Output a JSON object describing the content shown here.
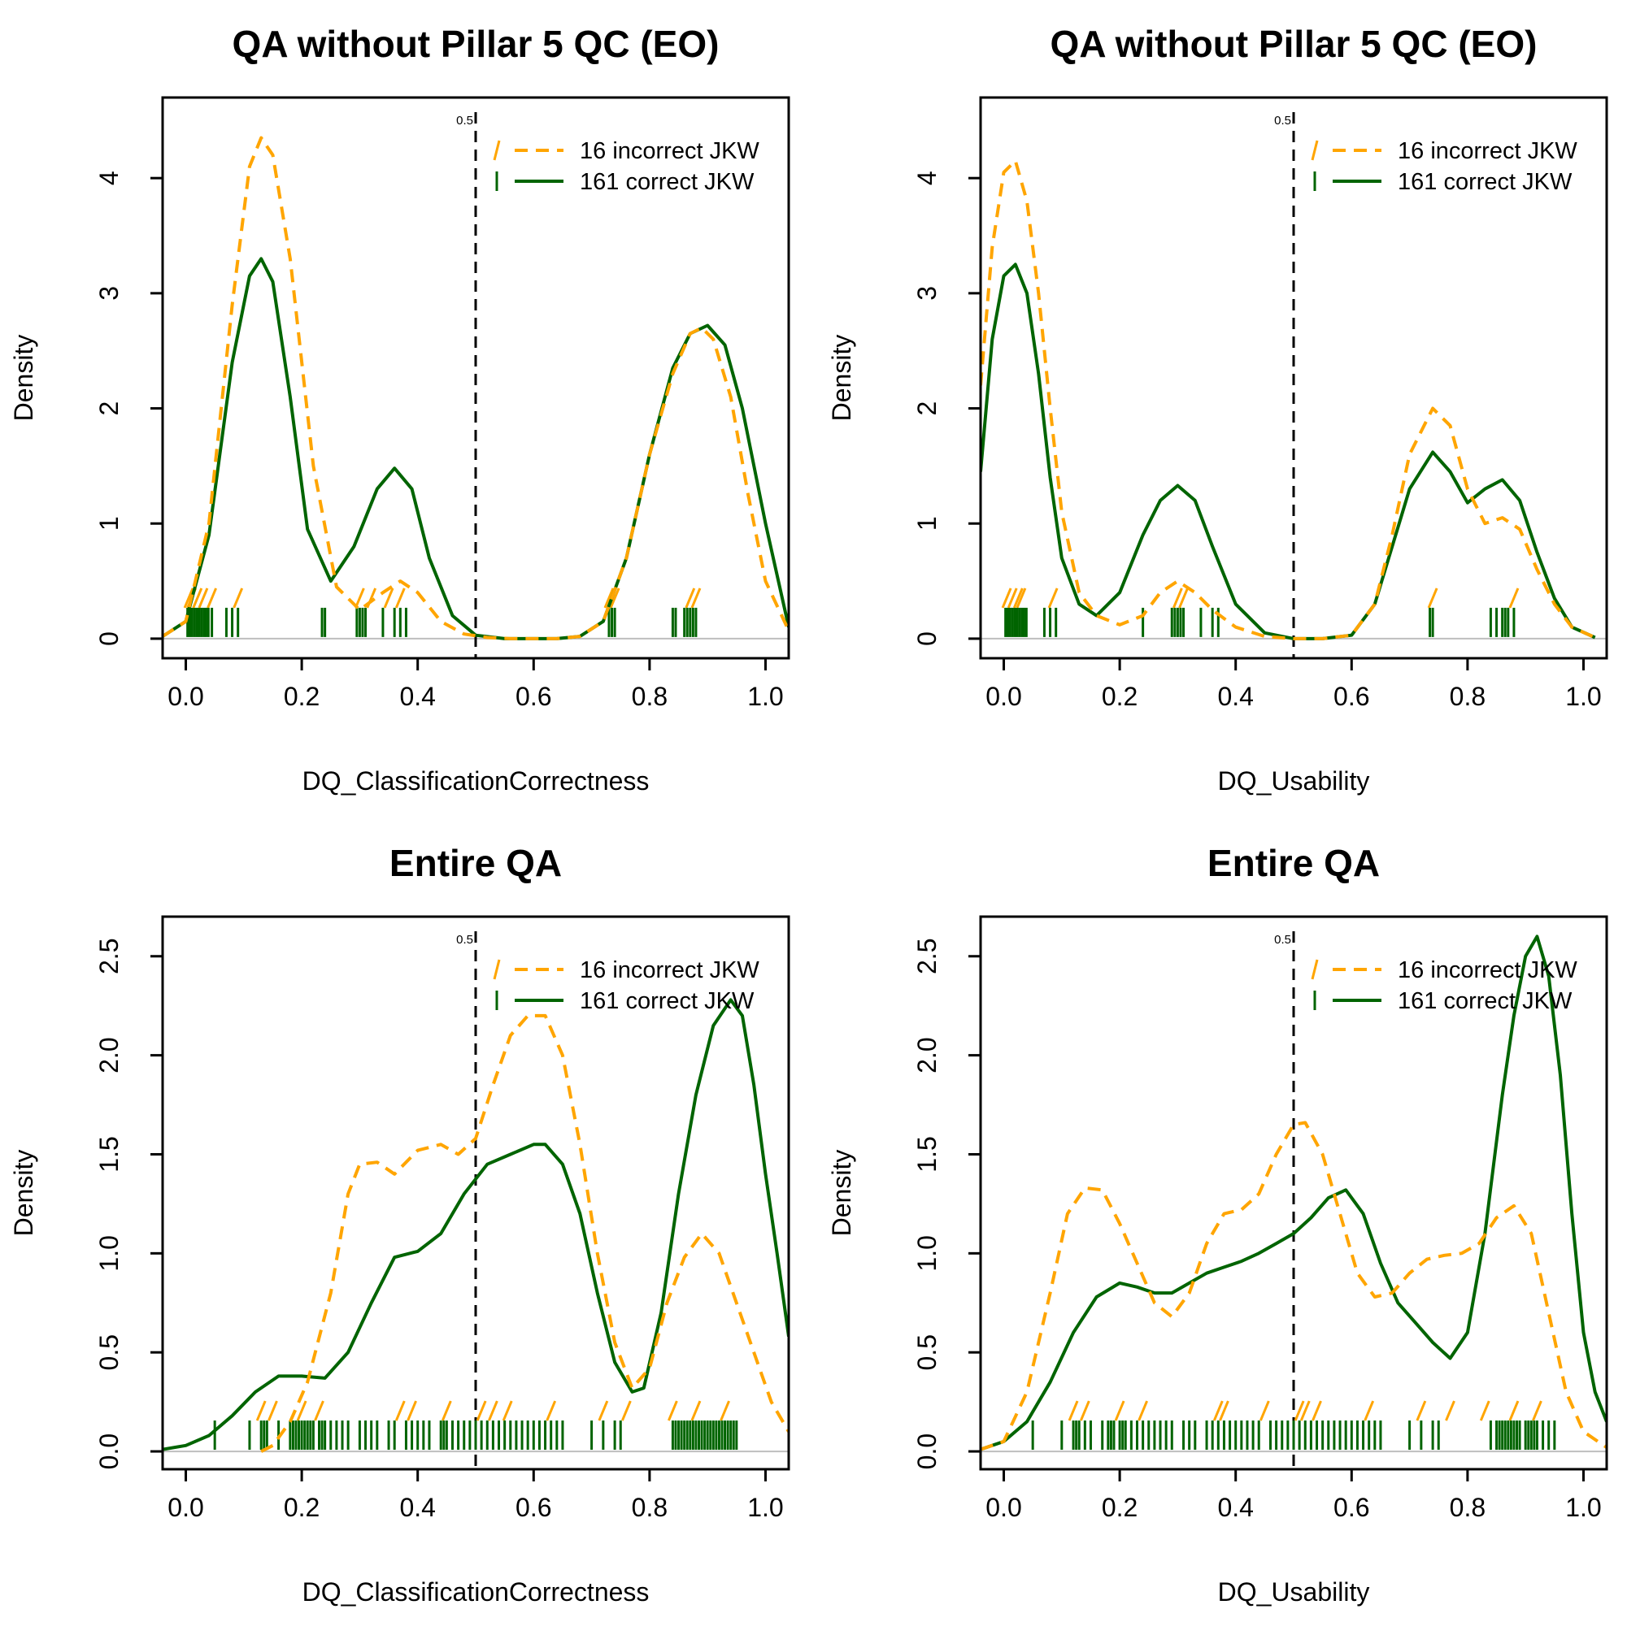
{
  "colors": {
    "incorrect": "#FFA500",
    "correct": "#006400",
    "baseline": "#BEBEBE",
    "axis": "#000000"
  },
  "chart_data": [
    {
      "type": "line",
      "title": "QA without Pillar 5 QC (EO)",
      "xlabel": "DQ_ClassificationCorrectness",
      "ylabel": "Density",
      "xlim": [
        -0.04,
        1.04
      ],
      "ylim": [
        -0.17,
        4.7
      ],
      "xticks": [
        0.0,
        0.2,
        0.4,
        0.6,
        0.8,
        1.0
      ],
      "xtick_labels": [
        "0.0",
        "0.2",
        "0.4",
        "0.6",
        "0.8",
        "1.0"
      ],
      "yticks": [
        0,
        1,
        2,
        3,
        4
      ],
      "ytick_labels": [
        "0",
        "1",
        "2",
        "3",
        "4"
      ],
      "threshold": 0.5,
      "threshold_label": "0.5",
      "legend": [
        "16 incorrect JKW",
        "161 correct JKW"
      ],
      "series": [
        {
          "name": "16 incorrect JKW",
          "x": [
            -0.04,
            0.0,
            0.04,
            0.08,
            0.11,
            0.13,
            0.15,
            0.18,
            0.22,
            0.26,
            0.3,
            0.34,
            0.37,
            0.4,
            0.44,
            0.48,
            0.52,
            0.56,
            0.6,
            0.64,
            0.68,
            0.72,
            0.76,
            0.8,
            0.84,
            0.87,
            0.89,
            0.91,
            0.94,
            0.97,
            1.0,
            1.04
          ],
          "y": [
            0.02,
            0.15,
            1.0,
            2.9,
            4.1,
            4.35,
            4.2,
            3.3,
            1.5,
            0.45,
            0.25,
            0.4,
            0.5,
            0.4,
            0.15,
            0.04,
            0.01,
            0.0,
            0.0,
            0.0,
            0.02,
            0.15,
            0.7,
            1.6,
            2.3,
            2.65,
            2.7,
            2.6,
            2.1,
            1.25,
            0.5,
            0.07
          ]
        },
        {
          "name": "161 correct JKW",
          "x": [
            -0.04,
            0.0,
            0.04,
            0.08,
            0.11,
            0.13,
            0.15,
            0.18,
            0.21,
            0.25,
            0.29,
            0.33,
            0.36,
            0.39,
            0.42,
            0.46,
            0.5,
            0.55,
            0.6,
            0.64,
            0.68,
            0.72,
            0.76,
            0.8,
            0.84,
            0.87,
            0.9,
            0.93,
            0.96,
            1.0,
            1.04
          ],
          "y": [
            0.02,
            0.15,
            0.9,
            2.4,
            3.15,
            3.3,
            3.1,
            2.1,
            0.95,
            0.5,
            0.8,
            1.3,
            1.48,
            1.3,
            0.7,
            0.2,
            0.03,
            0.0,
            0.0,
            0.0,
            0.02,
            0.15,
            0.7,
            1.6,
            2.35,
            2.65,
            2.72,
            2.55,
            2.0,
            1.0,
            0.1
          ]
        }
      ],
      "rug_incorrect": [
        0.005,
        0.01,
        0.02,
        0.03,
        0.045,
        0.09,
        0.3,
        0.32,
        0.35,
        0.37,
        0.73,
        0.74,
        0.87,
        0.88
      ],
      "rug_correct": [
        0.003,
        0.007,
        0.011,
        0.015,
        0.019,
        0.023,
        0.027,
        0.031,
        0.035,
        0.039,
        0.045,
        0.07,
        0.08,
        0.09,
        0.235,
        0.24,
        0.295,
        0.3,
        0.305,
        0.31,
        0.34,
        0.36,
        0.37,
        0.38,
        0.73,
        0.735,
        0.74,
        0.84,
        0.845,
        0.86,
        0.865,
        0.87,
        0.875,
        0.88
      ]
    },
    {
      "type": "line",
      "title": "QA without Pillar 5 QC (EO)",
      "xlabel": "DQ_Usability",
      "ylabel": "Density",
      "xlim": [
        -0.04,
        1.04
      ],
      "ylim": [
        -0.17,
        4.7
      ],
      "xticks": [
        0.0,
        0.2,
        0.4,
        0.6,
        0.8,
        1.0
      ],
      "xtick_labels": [
        "0.0",
        "0.2",
        "0.4",
        "0.6",
        "0.8",
        "1.0"
      ],
      "yticks": [
        0,
        1,
        2,
        3,
        4
      ],
      "ytick_labels": [
        "0",
        "1",
        "2",
        "3",
        "4"
      ],
      "threshold": 0.5,
      "threshold_label": "0.5",
      "legend": [
        "16 incorrect JKW",
        "161 correct JKW"
      ],
      "series": [
        {
          "name": "16 incorrect JKW",
          "x": [
            -0.04,
            -0.02,
            0.0,
            0.02,
            0.04,
            0.06,
            0.08,
            0.1,
            0.13,
            0.16,
            0.2,
            0.24,
            0.27,
            0.3,
            0.33,
            0.36,
            0.4,
            0.45,
            0.5,
            0.55,
            0.6,
            0.64,
            0.67,
            0.7,
            0.74,
            0.77,
            0.8,
            0.83,
            0.86,
            0.89,
            0.92,
            0.95,
            0.98,
            1.02
          ],
          "y": [
            2.2,
            3.4,
            4.05,
            4.15,
            3.8,
            3.0,
            2.0,
            1.1,
            0.4,
            0.2,
            0.12,
            0.2,
            0.4,
            0.5,
            0.4,
            0.25,
            0.1,
            0.02,
            0.0,
            0.0,
            0.03,
            0.3,
            0.9,
            1.6,
            2.0,
            1.85,
            1.3,
            1.0,
            1.05,
            0.95,
            0.6,
            0.3,
            0.1,
            0.01
          ]
        },
        {
          "name": "161 correct JKW",
          "x": [
            -0.04,
            -0.02,
            0.0,
            0.02,
            0.04,
            0.06,
            0.08,
            0.1,
            0.13,
            0.16,
            0.2,
            0.24,
            0.27,
            0.3,
            0.33,
            0.36,
            0.4,
            0.45,
            0.5,
            0.55,
            0.6,
            0.64,
            0.67,
            0.7,
            0.74,
            0.77,
            0.8,
            0.83,
            0.86,
            0.89,
            0.92,
            0.95,
            0.98,
            1.02
          ],
          "y": [
            1.45,
            2.6,
            3.15,
            3.25,
            3.0,
            2.3,
            1.4,
            0.7,
            0.3,
            0.2,
            0.4,
            0.9,
            1.2,
            1.33,
            1.2,
            0.8,
            0.3,
            0.05,
            0.0,
            0.0,
            0.03,
            0.3,
            0.8,
            1.3,
            1.62,
            1.45,
            1.18,
            1.3,
            1.38,
            1.2,
            0.75,
            0.35,
            0.1,
            0.01
          ]
        }
      ],
      "rug_incorrect": [
        0.005,
        0.015,
        0.025,
        0.03,
        0.085,
        0.3,
        0.31,
        0.74,
        0.88
      ],
      "rug_correct": [
        0.003,
        0.007,
        0.011,
        0.015,
        0.019,
        0.023,
        0.027,
        0.031,
        0.035,
        0.039,
        0.07,
        0.08,
        0.09,
        0.24,
        0.29,
        0.295,
        0.3,
        0.305,
        0.31,
        0.34,
        0.36,
        0.37,
        0.735,
        0.74,
        0.84,
        0.85,
        0.86,
        0.865,
        0.87,
        0.88
      ]
    },
    {
      "type": "line",
      "title": "Entire QA",
      "xlabel": "DQ_ClassificationCorrectness",
      "ylabel": "Density",
      "xlim": [
        -0.04,
        1.04
      ],
      "ylim": [
        -0.09,
        2.7
      ],
      "xticks": [
        0.0,
        0.2,
        0.4,
        0.6,
        0.8,
        1.0
      ],
      "xtick_labels": [
        "0.0",
        "0.2",
        "0.4",
        "0.6",
        "0.8",
        "1.0"
      ],
      "yticks": [
        0.0,
        0.5,
        1.0,
        1.5,
        2.0,
        2.5
      ],
      "ytick_labels": [
        "0.0",
        "0.5",
        "1.0",
        "1.5",
        "2.0",
        "2.5"
      ],
      "threshold": 0.5,
      "threshold_label": "0.5",
      "legend": [
        "16 incorrect JKW",
        "161 correct JKW"
      ],
      "series": [
        {
          "name": "16 incorrect JKW",
          "x": [
            0.13,
            0.15,
            0.18,
            0.21,
            0.25,
            0.28,
            0.3,
            0.33,
            0.36,
            0.4,
            0.44,
            0.47,
            0.5,
            0.53,
            0.56,
            0.59,
            0.62,
            0.65,
            0.68,
            0.71,
            0.74,
            0.77,
            0.8,
            0.83,
            0.86,
            0.89,
            0.92,
            0.95,
            0.98,
            1.01,
            1.04
          ],
          "y": [
            0.0,
            0.03,
            0.15,
            0.35,
            0.8,
            1.3,
            1.45,
            1.46,
            1.4,
            1.52,
            1.55,
            1.5,
            1.58,
            1.85,
            2.1,
            2.2,
            2.2,
            2.0,
            1.55,
            1.0,
            0.55,
            0.32,
            0.42,
            0.75,
            0.98,
            1.1,
            1.0,
            0.75,
            0.5,
            0.25,
            0.1
          ]
        },
        {
          "name": "161 correct JKW",
          "x": [
            -0.04,
            0.0,
            0.04,
            0.08,
            0.12,
            0.16,
            0.2,
            0.24,
            0.28,
            0.32,
            0.36,
            0.4,
            0.44,
            0.48,
            0.52,
            0.56,
            0.6,
            0.62,
            0.65,
            0.68,
            0.71,
            0.74,
            0.77,
            0.79,
            0.82,
            0.85,
            0.88,
            0.91,
            0.94,
            0.96,
            0.98,
            1.0,
            1.02,
            1.04
          ],
          "y": [
            0.01,
            0.03,
            0.08,
            0.18,
            0.3,
            0.38,
            0.38,
            0.37,
            0.5,
            0.75,
            0.98,
            1.01,
            1.1,
            1.3,
            1.45,
            1.5,
            1.55,
            1.55,
            1.45,
            1.2,
            0.8,
            0.45,
            0.3,
            0.32,
            0.7,
            1.3,
            1.8,
            2.15,
            2.28,
            2.2,
            1.85,
            1.4,
            1.0,
            0.58
          ]
        }
      ],
      "rug_incorrect": [
        0.13,
        0.15,
        0.2,
        0.23,
        0.37,
        0.39,
        0.45,
        0.51,
        0.53,
        0.555,
        0.63,
        0.72,
        0.76,
        0.84,
        0.88,
        0.93
      ],
      "rug_correct": [
        0.05,
        0.11,
        0.13,
        0.135,
        0.14,
        0.16,
        0.18,
        0.185,
        0.19,
        0.195,
        0.2,
        0.205,
        0.21,
        0.215,
        0.22,
        0.23,
        0.235,
        0.24,
        0.25,
        0.26,
        0.27,
        0.28,
        0.3,
        0.31,
        0.32,
        0.33,
        0.35,
        0.36,
        0.38,
        0.39,
        0.4,
        0.41,
        0.42,
        0.44,
        0.445,
        0.45,
        0.46,
        0.47,
        0.48,
        0.49,
        0.5,
        0.51,
        0.52,
        0.53,
        0.54,
        0.55,
        0.56,
        0.57,
        0.58,
        0.59,
        0.6,
        0.61,
        0.62,
        0.63,
        0.64,
        0.65,
        0.7,
        0.72,
        0.74,
        0.75,
        0.84,
        0.845,
        0.85,
        0.855,
        0.86,
        0.865,
        0.87,
        0.875,
        0.88,
        0.885,
        0.89,
        0.895,
        0.9,
        0.905,
        0.91,
        0.915,
        0.92,
        0.925,
        0.93,
        0.935,
        0.94,
        0.945,
        0.95
      ]
    },
    {
      "type": "line",
      "title": "Entire QA",
      "xlabel": "DQ_Usability",
      "ylabel": "Density",
      "xlim": [
        -0.04,
        1.04
      ],
      "ylim": [
        -0.09,
        2.7
      ],
      "xticks": [
        0.0,
        0.2,
        0.4,
        0.6,
        0.8,
        1.0
      ],
      "xtick_labels": [
        "0.0",
        "0.2",
        "0.4",
        "0.6",
        "0.8",
        "1.0"
      ],
      "yticks": [
        0.0,
        0.5,
        1.0,
        1.5,
        2.0,
        2.5
      ],
      "ytick_labels": [
        "0.0",
        "0.5",
        "1.0",
        "1.5",
        "2.0",
        "2.5"
      ],
      "threshold": 0.5,
      "threshold_label": "0.5",
      "legend": [
        "16 incorrect JKW",
        "161 correct JKW"
      ],
      "series": [
        {
          "name": "16 incorrect JKW",
          "x": [
            -0.04,
            0.0,
            0.04,
            0.08,
            0.11,
            0.14,
            0.17,
            0.2,
            0.23,
            0.26,
            0.29,
            0.32,
            0.35,
            0.38,
            0.41,
            0.44,
            0.47,
            0.5,
            0.52,
            0.55,
            0.58,
            0.61,
            0.64,
            0.67,
            0.7,
            0.73,
            0.76,
            0.79,
            0.82,
            0.85,
            0.88,
            0.91,
            0.94,
            0.97,
            1.0,
            1.04
          ],
          "y": [
            0.01,
            0.05,
            0.3,
            0.8,
            1.2,
            1.33,
            1.32,
            1.15,
            0.95,
            0.75,
            0.68,
            0.8,
            1.05,
            1.2,
            1.22,
            1.3,
            1.5,
            1.65,
            1.66,
            1.5,
            1.2,
            0.9,
            0.78,
            0.8,
            0.9,
            0.97,
            0.99,
            1.0,
            1.05,
            1.18,
            1.24,
            1.1,
            0.7,
            0.3,
            0.1,
            0.02
          ]
        },
        {
          "name": "161 correct JKW",
          "x": [
            -0.04,
            0.0,
            0.04,
            0.08,
            0.12,
            0.16,
            0.2,
            0.23,
            0.26,
            0.29,
            0.32,
            0.35,
            0.38,
            0.41,
            0.44,
            0.47,
            0.5,
            0.53,
            0.56,
            0.59,
            0.62,
            0.65,
            0.68,
            0.71,
            0.74,
            0.77,
            0.8,
            0.83,
            0.86,
            0.88,
            0.9,
            0.92,
            0.94,
            0.96,
            0.98,
            1.0,
            1.02,
            1.04
          ],
          "y": [
            0.01,
            0.05,
            0.15,
            0.35,
            0.6,
            0.78,
            0.85,
            0.83,
            0.8,
            0.8,
            0.85,
            0.9,
            0.93,
            0.96,
            1.0,
            1.05,
            1.1,
            1.18,
            1.28,
            1.32,
            1.2,
            0.95,
            0.75,
            0.65,
            0.55,
            0.47,
            0.6,
            1.1,
            1.8,
            2.2,
            2.5,
            2.6,
            2.4,
            1.9,
            1.2,
            0.6,
            0.3,
            0.15
          ]
        }
      ],
      "rug_incorrect": [
        0.12,
        0.14,
        0.2,
        0.24,
        0.37,
        0.38,
        0.45,
        0.51,
        0.52,
        0.54,
        0.63,
        0.72,
        0.77,
        0.83,
        0.88,
        0.92
      ],
      "rug_correct": [
        0.05,
        0.1,
        0.12,
        0.125,
        0.13,
        0.14,
        0.15,
        0.17,
        0.18,
        0.185,
        0.19,
        0.2,
        0.205,
        0.21,
        0.22,
        0.23,
        0.24,
        0.25,
        0.26,
        0.27,
        0.28,
        0.29,
        0.31,
        0.32,
        0.33,
        0.35,
        0.36,
        0.37,
        0.38,
        0.39,
        0.4,
        0.41,
        0.42,
        0.43,
        0.44,
        0.46,
        0.47,
        0.48,
        0.49,
        0.5,
        0.51,
        0.52,
        0.53,
        0.54,
        0.55,
        0.56,
        0.57,
        0.58,
        0.59,
        0.6,
        0.61,
        0.62,
        0.63,
        0.64,
        0.65,
        0.7,
        0.72,
        0.74,
        0.75,
        0.84,
        0.85,
        0.855,
        0.86,
        0.865,
        0.87,
        0.875,
        0.88,
        0.885,
        0.89,
        0.9,
        0.905,
        0.91,
        0.915,
        0.92,
        0.93,
        0.94,
        0.95
      ]
    }
  ]
}
